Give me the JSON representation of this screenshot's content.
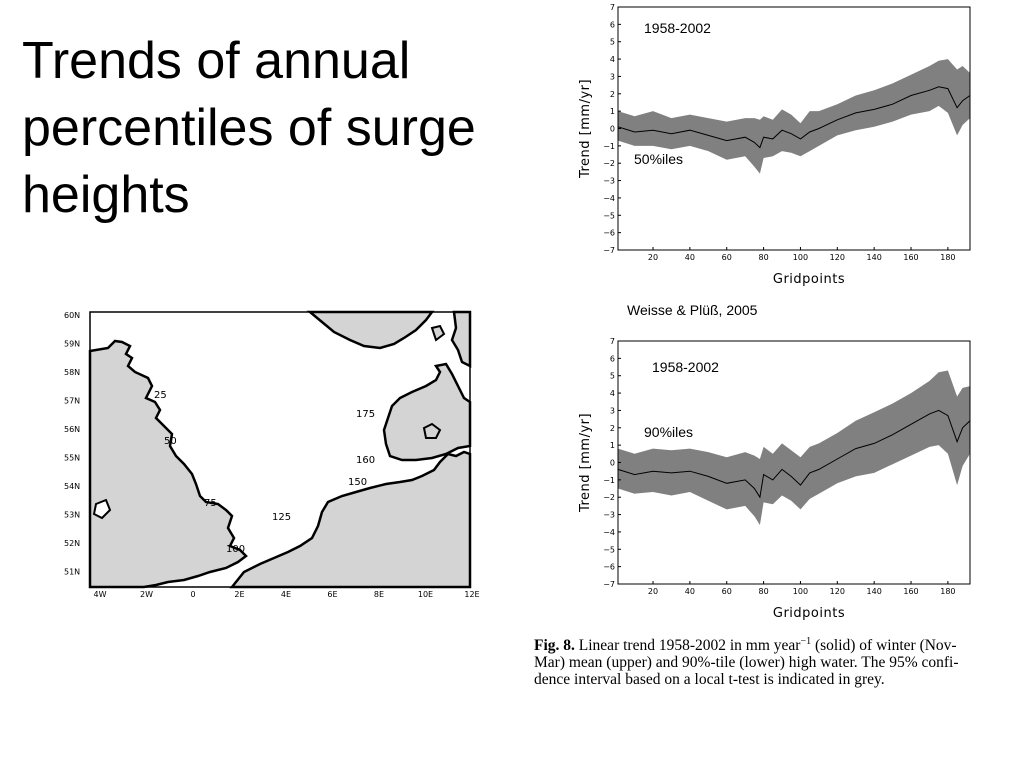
{
  "slide": {
    "title": "Trends of annual percentiles of surge heights",
    "citation": "Weisse & Plüß, 2005"
  },
  "caption": {
    "fig_label": "Fig. 8.",
    "line1": " Linear trend 1958-2002 in mm year",
    "line1_sup": "−1",
    "line1_rest": " (solid) of winter (Nov-",
    "line2": "Mar) mean (upper) and 90%-tile (lower) high water. The 95% confi-",
    "line3": "dence interval based on a local t-test is indicated in grey."
  },
  "map": {
    "lat_labels": [
      "60N",
      "59N",
      "58N",
      "57N",
      "56N",
      "55N",
      "54N",
      "53N",
      "52N",
      "51N"
    ],
    "lon_labels": [
      "4W",
      "2W",
      "0",
      "2E",
      "4E",
      "6E",
      "8E",
      "10E",
      "12E"
    ],
    "gridpoint_labels": [
      "25",
      "50",
      "75",
      "100",
      "125",
      "150",
      "160",
      "175"
    ],
    "land_color": "#d4d4d4",
    "coast_color": "#000000"
  },
  "chart_data": [
    {
      "type": "line",
      "period_label": "1958-2002",
      "percentile_label": "50%iles",
      "xlabel": "Gridpoints",
      "ylabel": "Trend  [mm/yr]",
      "xlim": [
        1,
        192
      ],
      "ylim": [
        -7,
        7
      ],
      "xticks": [
        20,
        40,
        60,
        80,
        100,
        120,
        140,
        160,
        180
      ],
      "yticks": [
        -7,
        -6,
        -5,
        -4,
        -3,
        -2,
        -1,
        0,
        1,
        2,
        3,
        4,
        5,
        6,
        7
      ],
      "band_color": "#808080",
      "series": [
        {
          "x": [
            1,
            10,
            20,
            30,
            40,
            50,
            60,
            70,
            75,
            78,
            80,
            85,
            90,
            95,
            100,
            105,
            110,
            120,
            130,
            140,
            150,
            160,
            170,
            175,
            180,
            185,
            188,
            192
          ],
          "values": [
            0.1,
            -0.2,
            -0.1,
            -0.3,
            -0.1,
            -0.4,
            -0.7,
            -0.5,
            -0.8,
            -1.1,
            -0.5,
            -0.6,
            -0.1,
            -0.3,
            -0.6,
            -0.2,
            0.0,
            0.5,
            0.9,
            1.1,
            1.4,
            1.9,
            2.2,
            2.4,
            2.3,
            1.2,
            1.6,
            1.9
          ],
          "lower": [
            -0.7,
            -1.0,
            -1.0,
            -1.2,
            -1.0,
            -1.3,
            -1.8,
            -1.6,
            -2.2,
            -2.6,
            -1.7,
            -1.6,
            -1.3,
            -1.4,
            -1.6,
            -1.3,
            -1.0,
            -0.4,
            -0.1,
            0.1,
            0.4,
            0.8,
            1.0,
            1.3,
            0.9,
            -0.4,
            0.2,
            0.6
          ],
          "upper": [
            1.0,
            0.7,
            1.0,
            0.6,
            0.8,
            0.6,
            0.4,
            0.6,
            0.6,
            0.5,
            0.7,
            0.5,
            1.1,
            0.8,
            0.3,
            1.0,
            1.0,
            1.4,
            1.9,
            2.2,
            2.6,
            3.1,
            3.6,
            3.9,
            4.0,
            3.4,
            3.6,
            3.2
          ]
        }
      ]
    },
    {
      "type": "line",
      "period_label": "1958-2002",
      "percentile_label": "90%iles",
      "xlabel": "Gridpoints",
      "ylabel": "Trend  [mm/yr]",
      "xlim": [
        1,
        192
      ],
      "ylim": [
        -7,
        7
      ],
      "xticks": [
        20,
        40,
        60,
        80,
        100,
        120,
        140,
        160,
        180
      ],
      "yticks": [
        -7,
        -6,
        -5,
        -4,
        -3,
        -2,
        -1,
        0,
        1,
        2,
        3,
        4,
        5,
        6,
        7
      ],
      "band_color": "#808080",
      "series": [
        {
          "x": [
            1,
            10,
            20,
            30,
            40,
            50,
            60,
            70,
            75,
            78,
            80,
            85,
            90,
            95,
            100,
            105,
            110,
            120,
            130,
            140,
            150,
            160,
            170,
            175,
            180,
            185,
            188,
            192
          ],
          "values": [
            -0.4,
            -0.7,
            -0.5,
            -0.6,
            -0.5,
            -0.8,
            -1.2,
            -1.0,
            -1.5,
            -2.0,
            -0.7,
            -1.0,
            -0.4,
            -0.8,
            -1.3,
            -0.6,
            -0.4,
            0.2,
            0.8,
            1.1,
            1.6,
            2.2,
            2.8,
            3.0,
            2.7,
            1.2,
            2.0,
            2.4
          ],
          "lower": [
            -1.5,
            -1.8,
            -1.7,
            -1.9,
            -1.7,
            -2.2,
            -2.7,
            -2.5,
            -3.1,
            -3.6,
            -2.3,
            -2.4,
            -1.9,
            -2.2,
            -2.7,
            -2.1,
            -1.8,
            -1.2,
            -0.8,
            -0.6,
            -0.1,
            0.4,
            0.9,
            1.0,
            0.5,
            -1.3,
            -0.2,
            0.5
          ],
          "upper": [
            0.8,
            0.5,
            0.8,
            0.7,
            0.8,
            0.6,
            0.3,
            0.6,
            0.4,
            0.2,
            0.9,
            0.5,
            1.1,
            0.7,
            0.3,
            0.9,
            1.1,
            1.7,
            2.4,
            2.9,
            3.4,
            4.0,
            4.7,
            5.2,
            5.3,
            3.8,
            4.3,
            4.4
          ]
        }
      ]
    }
  ]
}
